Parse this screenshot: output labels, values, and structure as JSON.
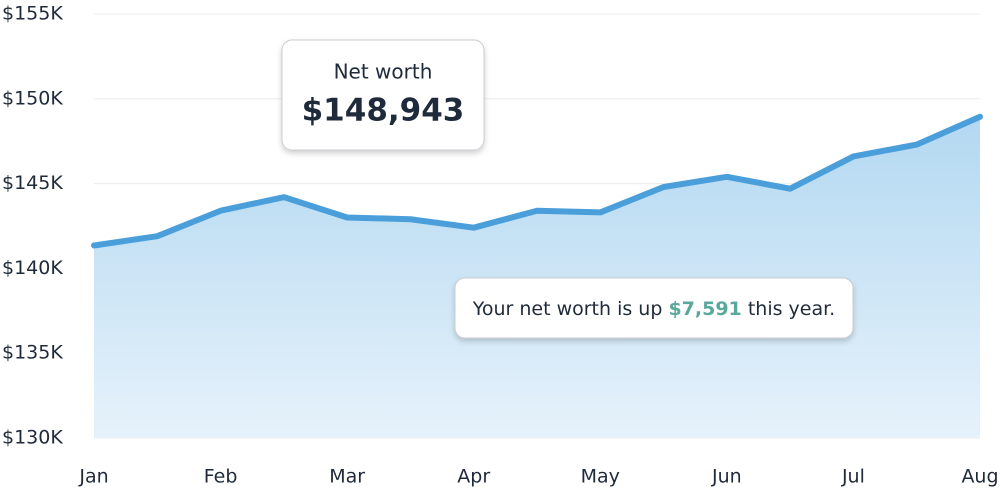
{
  "chart_data": {
    "type": "area",
    "categories": [
      "Jan",
      null,
      "Feb",
      null,
      "Mar",
      null,
      "Apr",
      null,
      "May",
      null,
      "Jun",
      null,
      "Jul",
      null,
      "Aug"
    ],
    "values": [
      141352,
      141900,
      143400,
      144200,
      143000,
      142900,
      142400,
      143400,
      143300,
      144800,
      145400,
      144700,
      146600,
      147300,
      148943
    ],
    "color": "#4a9fdb",
    "ylim": [
      130000,
      155000
    ],
    "yticks": [
      {
        "value": 130000,
        "label": "$130K"
      },
      {
        "value": 135000,
        "label": "$135K"
      },
      {
        "value": 140000,
        "label": "$140K"
      },
      {
        "value": 145000,
        "label": "$145K"
      },
      {
        "value": 150000,
        "label": "$150K"
      },
      {
        "value": 155000,
        "label": "$155K"
      }
    ],
    "grid": true,
    "annotations": {
      "net_worth_label": "Net worth",
      "net_worth_value": "$148,943",
      "summary_before": "Your net worth is up",
      "summary_amount": "$7,591",
      "summary_after": "this year."
    }
  }
}
